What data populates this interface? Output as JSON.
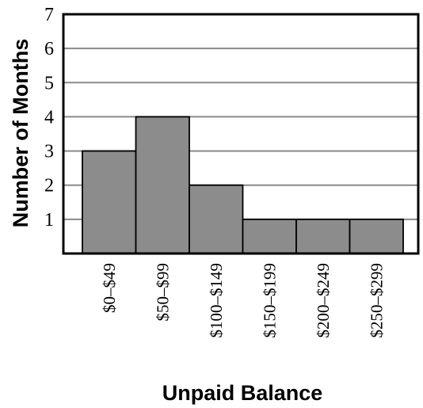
{
  "chart_data": {
    "type": "bar",
    "title": "",
    "xlabel": "Unpaid Balance",
    "ylabel": "Number of Months",
    "categories": [
      "$0–$49",
      "$50–$99",
      "$100–$149",
      "$150–$199",
      "$200–$249",
      "$250–$299"
    ],
    "values": [
      3,
      4,
      2,
      1,
      1,
      1
    ],
    "ylim": [
      0,
      7
    ],
    "yticks": [
      "1",
      "2",
      "3",
      "4",
      "5",
      "6",
      "7"
    ],
    "grid": true,
    "bar_color": "#8c8c8c",
    "grid_color": "#8a8a8a"
  }
}
